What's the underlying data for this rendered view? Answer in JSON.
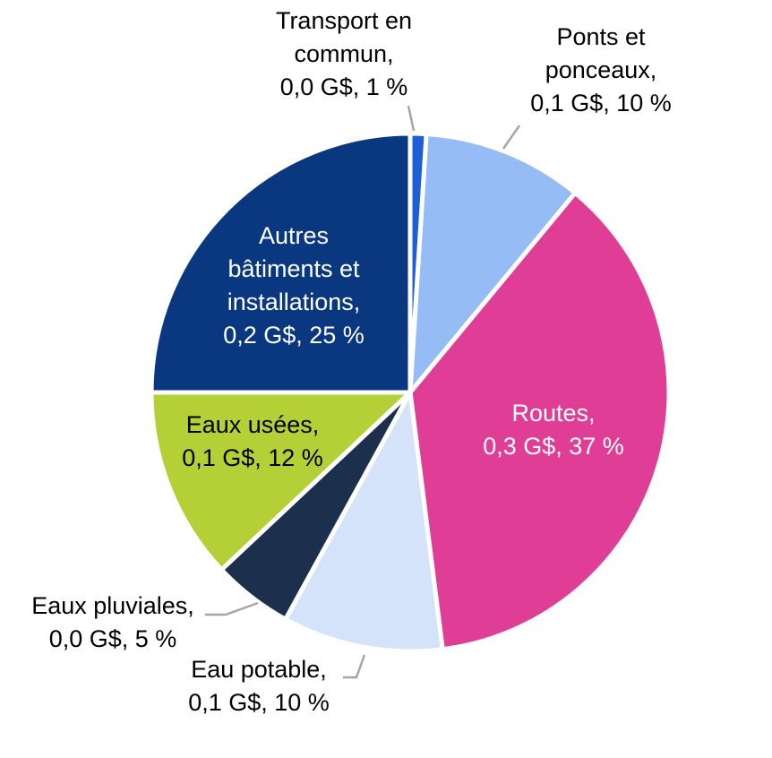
{
  "chart_data": {
    "type": "pie",
    "title": "",
    "start_angle_deg": 0,
    "direction": "clockwise",
    "slices": [
      {
        "id": "transport",
        "lines": [
          "Transport en",
          "commun,",
          "0,0 G$, 1 %"
        ],
        "value": 1,
        "color": "#1f5fd6",
        "label_position": "outside",
        "text_color": "#000000"
      },
      {
        "id": "ponts",
        "lines": [
          "Ponts et",
          "ponceaux,",
          "0,1 G$, 10 %"
        ],
        "value": 10,
        "color": "#95bcf4",
        "label_position": "outside",
        "text_color": "#000000"
      },
      {
        "id": "routes",
        "lines": [
          "Routes,",
          "0,3 G$, 37 %"
        ],
        "value": 37,
        "color": "#e03d97",
        "label_position": "inside",
        "text_color": "#ffffff"
      },
      {
        "id": "eau-potable",
        "lines": [
          "Eau potable,",
          "0,1 G$, 10 %"
        ],
        "value": 10,
        "color": "#d4e3f9",
        "label_position": "outside",
        "text_color": "#000000"
      },
      {
        "id": "eaux-pluviales",
        "lines": [
          "Eaux pluviales,",
          "0,0 G$, 5 %"
        ],
        "value": 5,
        "color": "#1c2f4d",
        "label_position": "outside",
        "text_color": "#000000"
      },
      {
        "id": "eaux-usees",
        "lines": [
          "Eaux usées,",
          "0,1 G$, 12 %"
        ],
        "value": 12,
        "color": "#b5cf36",
        "label_position": "inside",
        "text_color": "#000000"
      },
      {
        "id": "autres",
        "lines": [
          "Autres",
          "bâtiments et",
          "installations,",
          "0,2 G$, 25 %"
        ],
        "value": 25,
        "color": "#0a3880",
        "label_position": "inside",
        "text_color": "#ffffff"
      }
    ]
  }
}
